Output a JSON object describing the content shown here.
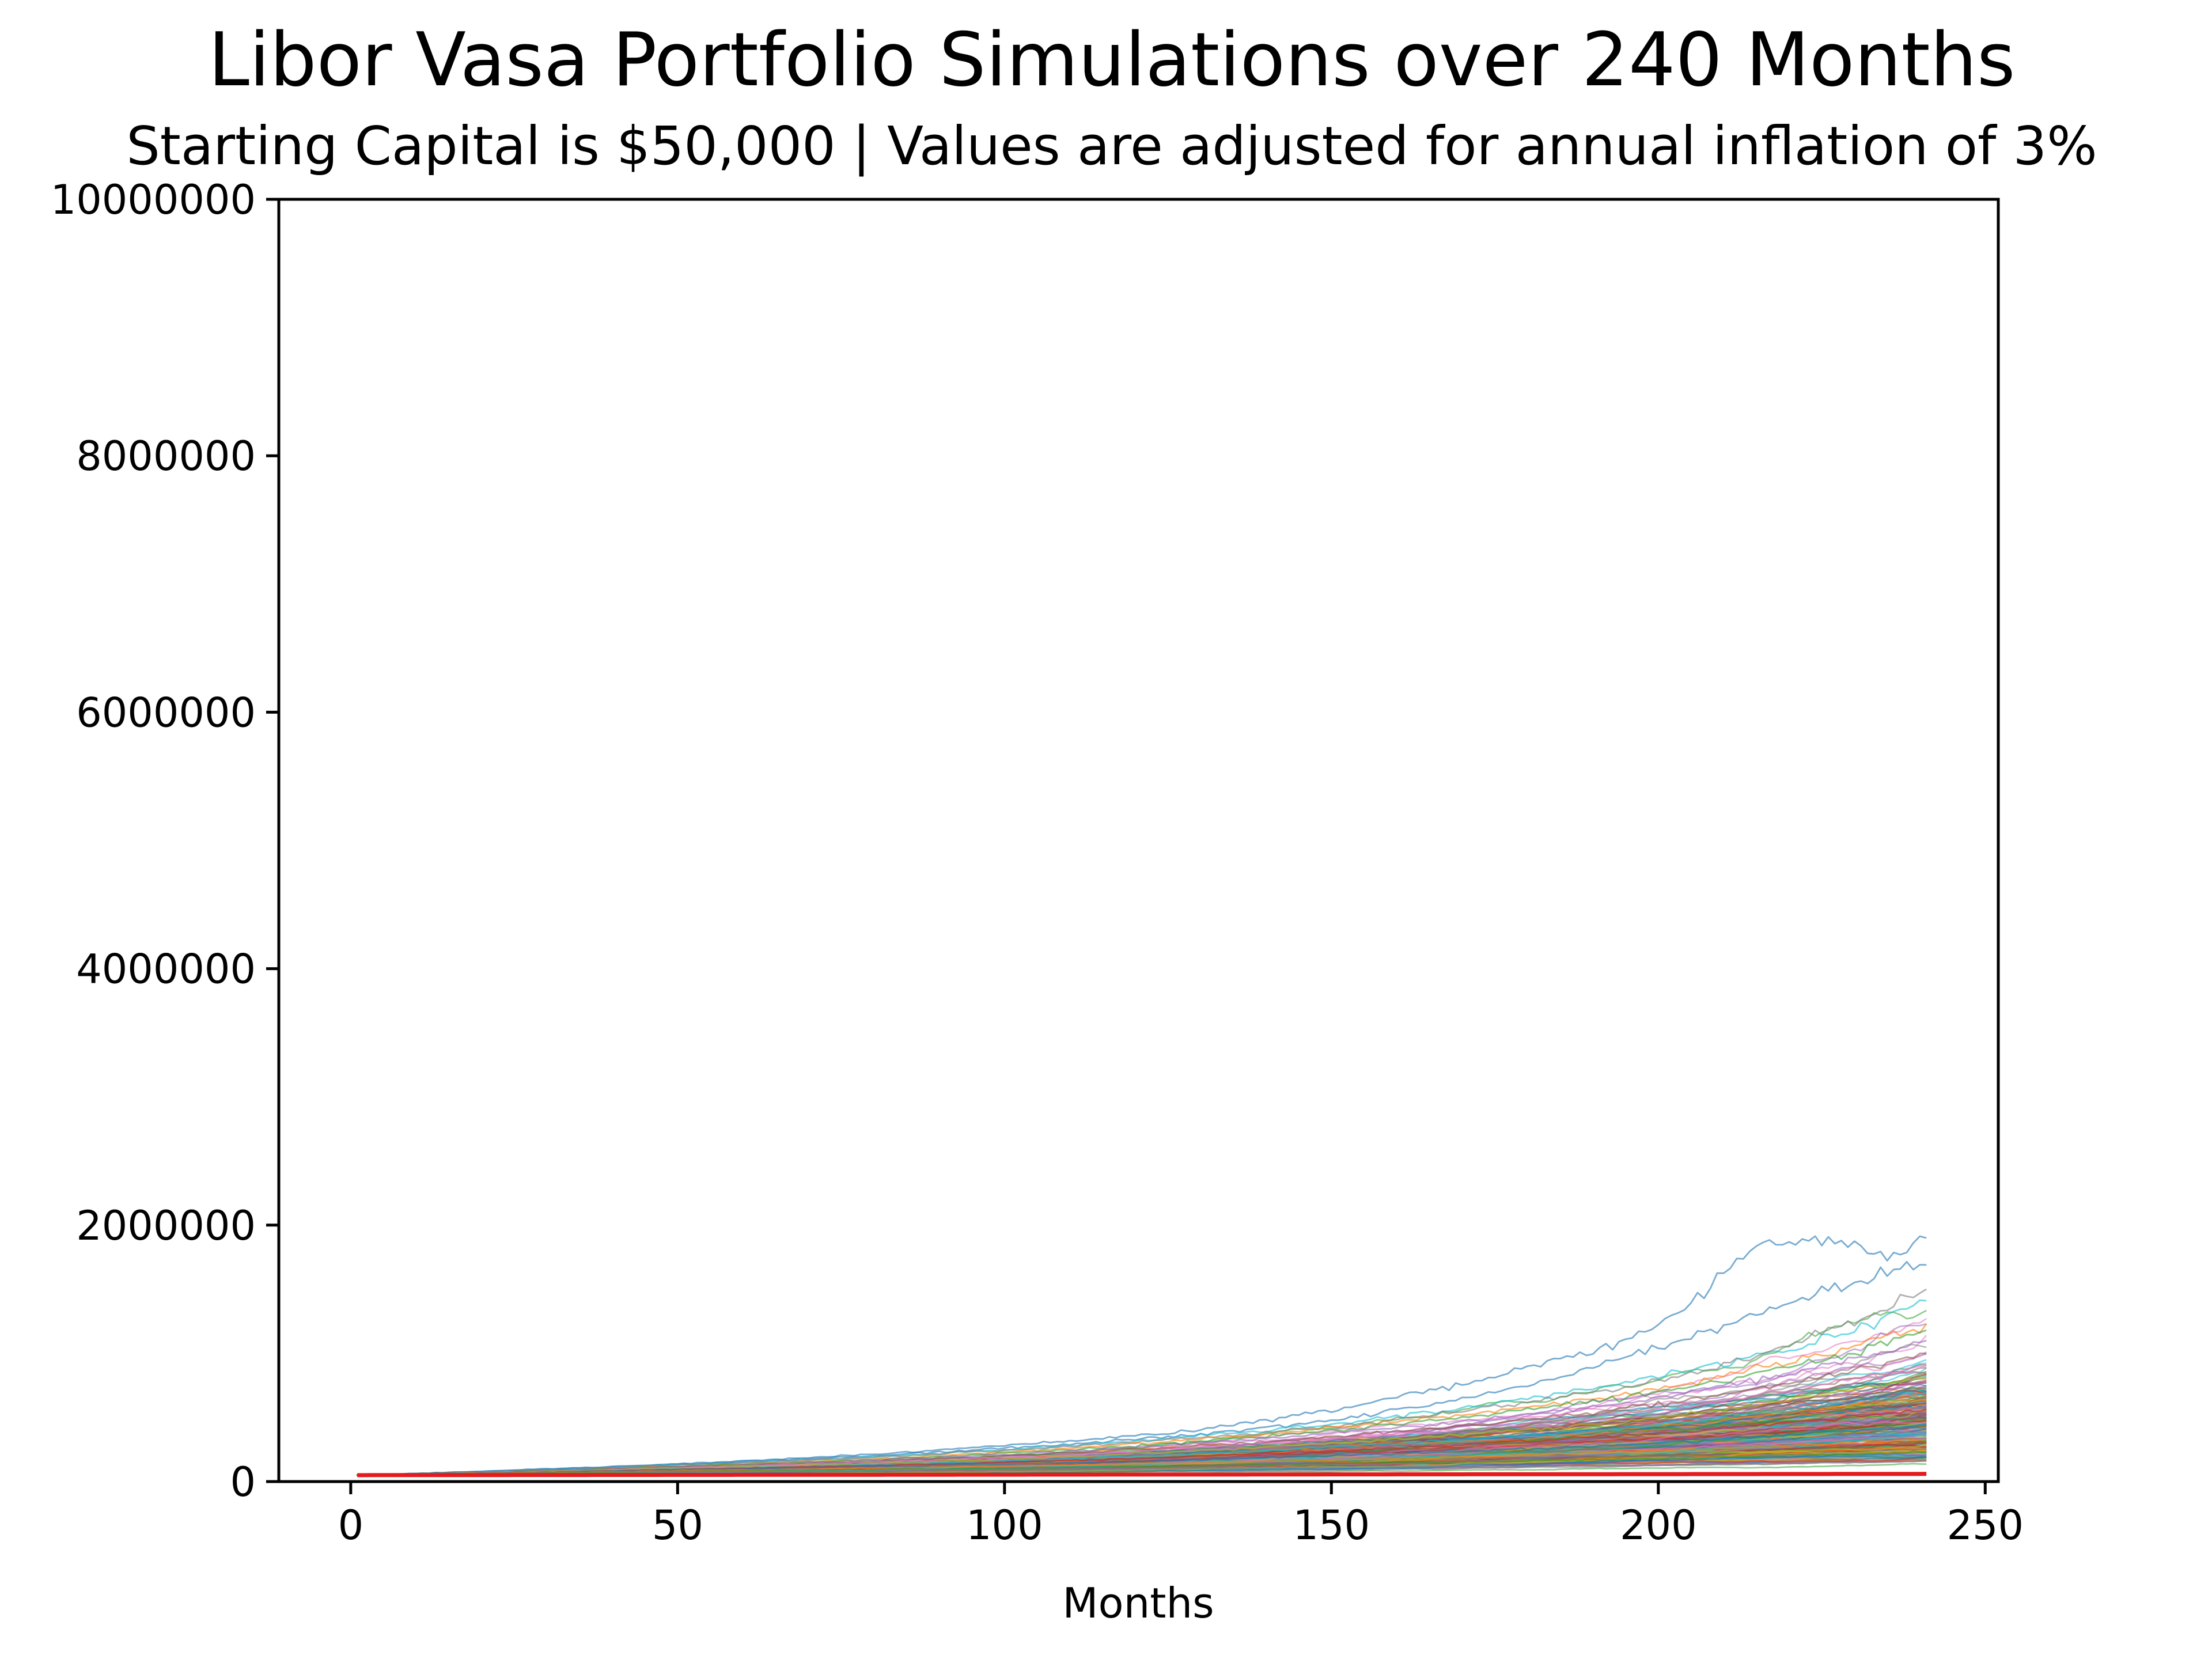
{
  "chart_data": {
    "type": "line",
    "title": "Libor Vasa Portfolio Simulations over 240 Months",
    "subtitle": "Starting Capital is $50,000 | Values are adjusted for annual inflation of 3%",
    "xlabel": "Months",
    "ylabel": "",
    "xlim": [
      -11,
      252
    ],
    "ylim": [
      0,
      10000000
    ],
    "x_ticks": [
      0,
      50,
      100,
      150,
      200,
      250
    ],
    "x_tick_labels": [
      "0",
      "50",
      "100",
      "150",
      "200",
      "250"
    ],
    "y_ticks": [
      0,
      2000000,
      4000000,
      6000000,
      8000000,
      10000000
    ],
    "y_tick_labels": [
      "0",
      "2000000",
      "4000000",
      "6000000",
      "8000000",
      "10000000"
    ],
    "grid": false,
    "legend": "none",
    "months": 240,
    "starting_capital": 50000,
    "simulation_count_drawn": 300,
    "series": [
      {
        "x": [
          0,
          25,
          50,
          75,
          100,
          125,
          150,
          175,
          200,
          215,
          225,
          235,
          241
        ],
        "values": [
          50000,
          90000,
          140000,
          200000,
          280000,
          380000,
          560000,
          820000,
          1210000,
          1870000,
          1890000,
          1760000,
          1900000
        ],
        "color": "#1f77b4"
      },
      {
        "x": [
          0,
          25,
          50,
          75,
          100,
          125,
          150,
          175,
          200,
          215,
          225,
          235,
          241
        ],
        "values": [
          50000,
          88000,
          135000,
          190000,
          260000,
          350000,
          480000,
          700000,
          1050000,
          1300000,
          1500000,
          1620000,
          1690000
        ],
        "color": "#1f77b4"
      },
      {
        "x": [
          0,
          50,
          100,
          150,
          200,
          225,
          241
        ],
        "values": [
          50000,
          130000,
          250000,
          450000,
          820000,
          1100000,
          1410000
        ],
        "color": "#17becf"
      },
      {
        "x": [
          0,
          50,
          100,
          150,
          200,
          225,
          241
        ],
        "values": [
          50000,
          128000,
          245000,
          430000,
          780000,
          1150000,
          1500000
        ],
        "color": "#7f7f7f"
      },
      {
        "x": [
          0,
          50,
          100,
          150,
          200,
          225,
          241
        ],
        "values": [
          50000,
          120000,
          230000,
          420000,
          720000,
          1000000,
          1230000
        ],
        "color": "#ff7f0e"
      },
      {
        "x": [
          0,
          50,
          100,
          150,
          200,
          225,
          241
        ],
        "values": [
          50000,
          118000,
          220000,
          400000,
          700000,
          950000,
          1180000
        ],
        "color": "#2ca02c"
      },
      {
        "x": [
          0,
          50,
          100,
          150,
          200,
          225,
          241
        ],
        "values": [
          50000,
          115000,
          210000,
          380000,
          650000,
          900000,
          1100000
        ],
        "color": "#9467bd"
      },
      {
        "x": [
          0,
          50,
          100,
          150,
          200,
          225,
          241
        ],
        "values": [
          50000,
          112000,
          200000,
          350000,
          600000,
          820000,
          1000000
        ],
        "color": "#8c564b"
      },
      {
        "x": [
          0,
          50,
          100,
          150,
          200,
          225,
          241
        ],
        "values": [
          50000,
          110000,
          190000,
          330000,
          560000,
          760000,
          900000
        ],
        "color": "#e377c2"
      },
      {
        "x": [
          0,
          50,
          100,
          150,
          200,
          225,
          241
        ],
        "values": [
          50000,
          105000,
          175000,
          300000,
          500000,
          680000,
          800000
        ],
        "color": "#bcbd22"
      },
      {
        "x": [
          0,
          50,
          100,
          150,
          200,
          225,
          241
        ],
        "values": [
          50000,
          100000,
          160000,
          270000,
          440000,
          580000,
          700000
        ],
        "color": "#17becf"
      },
      {
        "x": [
          0,
          50,
          100,
          150,
          200,
          225,
          241
        ],
        "values": [
          50000,
          95000,
          150000,
          240000,
          380000,
          480000,
          560000
        ],
        "color": "#d62728"
      },
      {
        "x": [
          0,
          50,
          100,
          150,
          200,
          225,
          241
        ],
        "values": [
          50000,
          90000,
          135000,
          200000,
          300000,
          380000,
          440000
        ],
        "color": "#1f77b4"
      },
      {
        "x": [
          0,
          50,
          100,
          150,
          200,
          225,
          241
        ],
        "values": [
          50000,
          85000,
          120000,
          170000,
          240000,
          290000,
          330000
        ],
        "color": "#ff7f0e"
      },
      {
        "x": [
          0,
          50,
          100,
          150,
          200,
          225,
          241
        ],
        "values": [
          50000,
          78000,
          105000,
          140000,
          180000,
          210000,
          230000
        ],
        "color": "#2ca02c"
      },
      {
        "x": [
          0,
          50,
          100,
          150,
          200,
          225,
          241
        ],
        "values": [
          50000,
          70000,
          90000,
          110000,
          130000,
          145000,
          160000
        ],
        "color": "#7f7f7f"
      },
      {
        "x": [
          0,
          50,
          100,
          150,
          200,
          225,
          241
        ],
        "values": [
          50000,
          52000,
          54000,
          56000,
          58000,
          59000,
          60000
        ],
        "color": "#e41a1c",
        "emphasis": true
      }
    ]
  }
}
